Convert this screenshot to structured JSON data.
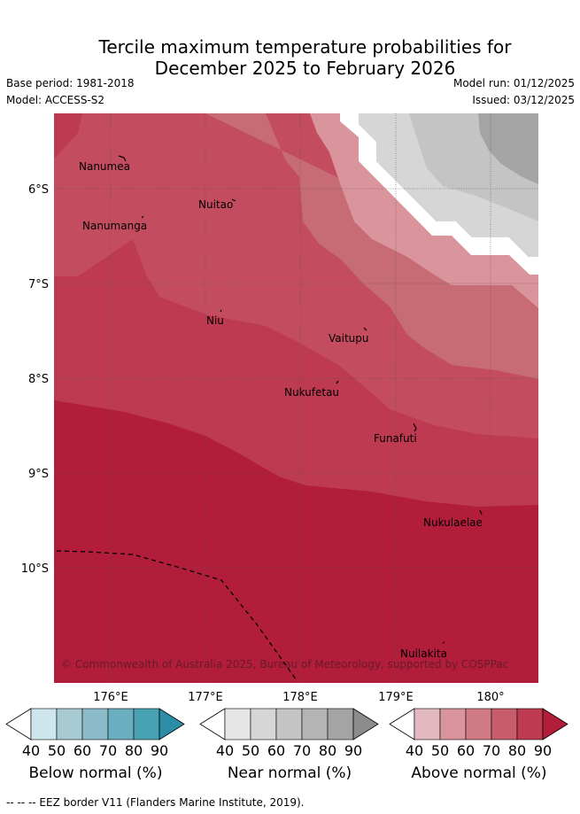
{
  "title_line1": "Tercile maximum temperature probabilities for",
  "title_line2": "December 2025 to February 2026",
  "base_period": "Base period: 1981-2018",
  "model": "Model: ACCESS-S2",
  "model_run": "Model run: 01/12/2025",
  "issued": "Issued: 03/12/2025",
  "lat_labels": [
    "6°S",
    "7°S",
    "8°S",
    "9°S",
    "10°S"
  ],
  "lon_labels": [
    "176°E",
    "177°E",
    "178°E",
    "179°E",
    "180°"
  ],
  "places": [
    {
      "name": "Nanumea"
    },
    {
      "name": "Nuitao"
    },
    {
      "name": "Nanumanga"
    },
    {
      "name": "Niu"
    },
    {
      "name": "Vaitupu"
    },
    {
      "name": "Nukufetau"
    },
    {
      "name": "Funafuti"
    },
    {
      "name": "Nukulaelae"
    },
    {
      "name": "Nuilakita"
    }
  ],
  "copyright": "© Commonwealth of Australia 2025, Bureau of Meteorology, supported by COSPPac",
  "colorbars": [
    {
      "label": "Below normal (%)",
      "ticks": [
        "40",
        "50",
        "60",
        "70",
        "80",
        "90"
      ],
      "colors": [
        "#ffffff",
        "#cde5ec",
        "#a8cbd3",
        "#8bbbc8",
        "#6aafbf",
        "#48a2b4",
        "#2c8ea6"
      ]
    },
    {
      "label": "Near normal (%)",
      "ticks": [
        "40",
        "50",
        "60",
        "70",
        "80",
        "90"
      ],
      "colors": [
        "#ffffff",
        "#e6e6e6",
        "#d6d6d6",
        "#c4c4c4",
        "#b4b4b4",
        "#a4a4a4",
        "#8c8c8c"
      ]
    },
    {
      "label": "Above normal (%)",
      "ticks": [
        "40",
        "50",
        "60",
        "70",
        "80",
        "90"
      ],
      "colors": [
        "#ffffff",
        "#e2b9c0",
        "#d9949c",
        "#d07a83",
        "#c75c6a",
        "#bd3a50",
        "#b21d3a"
      ]
    }
  ],
  "footer": "--  --  -- EEZ border V11 (Flanders Marine Institute, 2019)."
}
